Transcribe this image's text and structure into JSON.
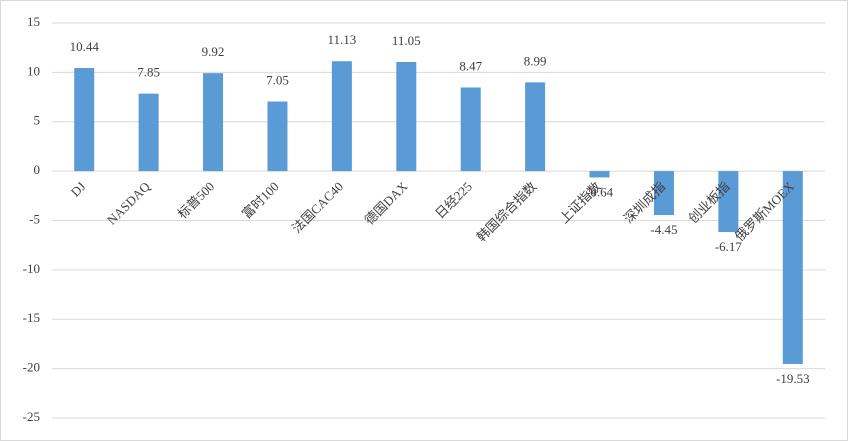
{
  "chart_data": {
    "type": "bar",
    "categories": [
      "DJ",
      "NASDAQ",
      "标普500",
      "富时100",
      "法国CAC40",
      "德国DAX",
      "日经225",
      "韩国综合指数",
      "上证指数",
      "深圳成指",
      "创业板指",
      "俄罗斯MOEX"
    ],
    "values": [
      10.44,
      7.85,
      9.92,
      7.05,
      11.13,
      11.05,
      8.47,
      8.99,
      -0.64,
      -4.45,
      -6.17,
      -19.53
    ],
    "color": "#5b9bd5",
    "ylim": [
      -25,
      15
    ],
    "yticks": [
      -25,
      -20,
      -15,
      -10,
      -5,
      0,
      5,
      10,
      15
    ],
    "grid": true
  }
}
